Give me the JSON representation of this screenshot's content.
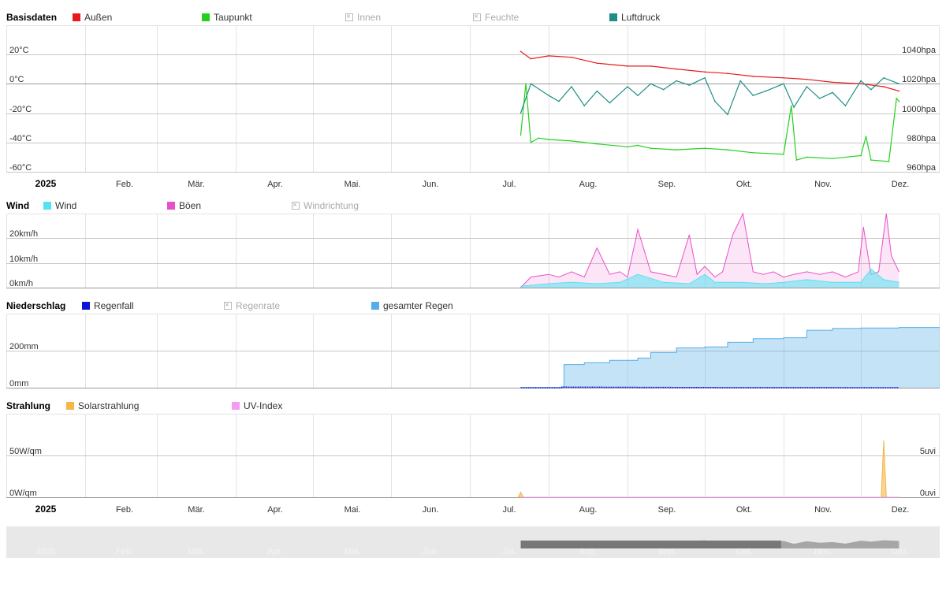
{
  "x_axis": {
    "labels": [
      "2025",
      "Feb.",
      "Mär.",
      "Apr.",
      "Mai.",
      "Jun.",
      "Jul.",
      "Aug.",
      "Sep.",
      "Okt.",
      "Nov.",
      "Dez."
    ],
    "start_label_bold": "2025"
  },
  "panels": {
    "basisdaten": {
      "title": "Basisdaten",
      "legend": [
        {
          "label": "Außen",
          "color": "#e8191d",
          "on": true
        },
        {
          "label": "Taupunkt",
          "color": "#23d11d",
          "on": true
        },
        {
          "label": "Innen",
          "color": "#cccccc",
          "on": false
        },
        {
          "label": "Feuchte",
          "color": "#cccccc",
          "on": false
        },
        {
          "label": "Luftdruck",
          "color": "#1f8e86",
          "on": true
        }
      ],
      "y_left_ticks": [
        "20°C",
        "0°C",
        "-20°C",
        "-40°C",
        "-60°C"
      ],
      "y_right_ticks": [
        "1040hpa",
        "1020hpa",
        "1000hpa",
        "980hpa",
        "960hpa"
      ]
    },
    "wind": {
      "title": "Wind",
      "legend": [
        {
          "label": "Wind",
          "color": "#55e3f2",
          "on": true
        },
        {
          "label": "Böen",
          "color": "#ea4fc8",
          "on": true
        },
        {
          "label": "Windrichtung",
          "color": "#cccccc",
          "on": false
        }
      ],
      "y_left_ticks": [
        "20km/h",
        "10km/h",
        "0km/h"
      ]
    },
    "niederschlag": {
      "title": "Niederschlag",
      "legend": [
        {
          "label": "Regenfall",
          "color": "#0d14d6",
          "on": true
        },
        {
          "label": "Regenrate",
          "color": "#cccccc",
          "on": false
        },
        {
          "label": "gesamter Regen",
          "color": "#56aee8",
          "on": true
        }
      ],
      "y_left_ticks": [
        "200mm",
        "0mm"
      ]
    },
    "strahlung": {
      "title": "Strahlung",
      "legend": [
        {
          "label": "Solarstrahlung",
          "color": "#f5b64a",
          "on": true
        },
        {
          "label": "UV-Index",
          "color": "#f59cf0",
          "on": true
        }
      ],
      "y_left_ticks": [
        "50W/qm",
        "0W/qm"
      ],
      "y_right_ticks": [
        "5uvi",
        "0uvi"
      ]
    }
  },
  "chart_data": [
    {
      "type": "line",
      "title": "Basisdaten",
      "x_range": [
        "2025-01-01",
        "2025-12-31"
      ],
      "ylim_temp": [
        -60,
        20
      ],
      "ylim_pressure": [
        960,
        1040
      ],
      "series": [
        {
          "name": "Außen",
          "axis": "temp",
          "color": "#e8191d",
          "x": [
            "2025-07-21",
            "2025-07-25",
            "2025-08-01",
            "2025-08-10",
            "2025-08-20",
            "2025-09-01",
            "2025-09-10",
            "2025-09-20",
            "2025-10-01",
            "2025-10-10",
            "2025-10-20",
            "2025-11-01",
            "2025-11-10",
            "2025-11-20",
            "2025-12-01",
            "2025-12-10",
            "2025-12-16"
          ],
          "y": [
            22,
            17,
            19,
            18,
            14,
            12,
            12,
            10,
            8,
            7,
            5,
            4,
            3,
            1,
            0,
            -2,
            -5
          ]
        },
        {
          "name": "Taupunkt",
          "axis": "temp",
          "color": "#23d11d",
          "x": [
            "2025-07-21",
            "2025-07-23",
            "2025-07-25",
            "2025-07-28",
            "2025-08-01",
            "2025-08-10",
            "2025-08-20",
            "2025-09-01",
            "2025-09-05",
            "2025-09-10",
            "2025-09-20",
            "2025-10-01",
            "2025-10-10",
            "2025-10-20",
            "2025-11-01",
            "2025-11-04",
            "2025-11-06",
            "2025-11-10",
            "2025-11-20",
            "2025-12-01",
            "2025-12-03",
            "2025-12-05",
            "2025-12-12",
            "2025-12-15",
            "2025-12-16"
          ],
          "y": [
            -35,
            0,
            -40,
            -37,
            -38,
            -39,
            -41,
            -43,
            -42,
            -44,
            -45,
            -44,
            -45,
            -47,
            -48,
            -15,
            -52,
            -50,
            -51,
            -49,
            -36,
            -52,
            -53,
            -10,
            -12
          ]
        },
        {
          "name": "Luftdruck",
          "axis": "pressure",
          "color": "#1f8e86",
          "x": [
            "2025-07-21",
            "2025-07-25",
            "2025-08-01",
            "2025-08-05",
            "2025-08-10",
            "2025-08-15",
            "2025-08-20",
            "2025-08-25",
            "2025-09-01",
            "2025-09-05",
            "2025-09-10",
            "2025-09-15",
            "2025-09-20",
            "2025-09-25",
            "2025-10-01",
            "2025-10-05",
            "2025-10-10",
            "2025-10-15",
            "2025-10-20",
            "2025-10-25",
            "2025-11-01",
            "2025-11-05",
            "2025-11-10",
            "2025-11-15",
            "2025-11-20",
            "2025-11-25",
            "2025-12-01",
            "2025-12-05",
            "2025-12-10",
            "2025-12-16"
          ],
          "y": [
            1000,
            1020,
            1012,
            1008,
            1018,
            1005,
            1015,
            1007,
            1018,
            1012,
            1020,
            1016,
            1022,
            1019,
            1024,
            1008,
            999,
            1022,
            1012,
            1015,
            1020,
            1004,
            1018,
            1010,
            1014,
            1005,
            1022,
            1016,
            1024,
            1020
          ]
        }
      ]
    },
    {
      "type": "area",
      "title": "Wind",
      "x_range": [
        "2025-01-01",
        "2025-12-31"
      ],
      "ylim": [
        0,
        28
      ],
      "series": [
        {
          "name": "Wind",
          "color": "#55e3f2",
          "x": [
            "2025-07-21",
            "2025-08-01",
            "2025-08-10",
            "2025-08-20",
            "2025-08-29",
            "2025-09-05",
            "2025-09-15",
            "2025-09-25",
            "2025-10-01",
            "2025-10-05",
            "2025-10-15",
            "2025-10-25",
            "2025-11-01",
            "2025-11-10",
            "2025-11-20",
            "2025-12-01",
            "2025-12-05",
            "2025-12-10",
            "2025-12-16"
          ],
          "y": [
            0.5,
            1.5,
            2,
            1.5,
            2,
            5,
            2,
            1.5,
            5,
            2,
            2,
            1.5,
            2,
            3,
            2,
            2,
            7,
            3,
            2
          ]
        },
        {
          "name": "Böen",
          "color": "#ea4fc8",
          "x": [
            "2025-07-21",
            "2025-07-25",
            "2025-08-01",
            "2025-08-05",
            "2025-08-10",
            "2025-08-15",
            "2025-08-20",
            "2025-08-25",
            "2025-08-29",
            "2025-09-01",
            "2025-09-05",
            "2025-09-10",
            "2025-09-15",
            "2025-09-20",
            "2025-09-25",
            "2025-09-28",
            "2025-10-01",
            "2025-10-05",
            "2025-10-08",
            "2025-10-12",
            "2025-10-16",
            "2025-10-20",
            "2025-10-24",
            "2025-10-28",
            "2025-11-01",
            "2025-11-05",
            "2025-11-10",
            "2025-11-15",
            "2025-11-20",
            "2025-11-25",
            "2025-11-30",
            "2025-12-02",
            "2025-12-05",
            "2025-12-08",
            "2025-12-11",
            "2025-12-13",
            "2025-12-16"
          ],
          "y": [
            0,
            4,
            5,
            4,
            6,
            4,
            15,
            5,
            6,
            4,
            22,
            6,
            5,
            4,
            20,
            5,
            8,
            4,
            6,
            20,
            28,
            6,
            5,
            6,
            4,
            5,
            6,
            5,
            6,
            4,
            6,
            23,
            5,
            6,
            28,
            12,
            6
          ]
        }
      ]
    },
    {
      "type": "area",
      "title": "Niederschlag",
      "x_range": [
        "2025-01-01",
        "2025-12-31"
      ],
      "ylim": [
        0,
        400
      ],
      "series": [
        {
          "name": "Regenfall",
          "color": "#0d14d6",
          "x": [
            "2025-07-21",
            "2025-08-06",
            "2025-08-07",
            "2025-10-01",
            "2025-12-16"
          ],
          "y": [
            0,
            0,
            3,
            1,
            0
          ]
        },
        {
          "name": "gesamter Regen",
          "color": "#56aee8",
          "x": [
            "2025-07-21",
            "2025-08-06",
            "2025-08-07",
            "2025-08-15",
            "2025-08-25",
            "2025-09-05",
            "2025-09-10",
            "2025-09-20",
            "2025-10-01",
            "2025-10-10",
            "2025-10-20",
            "2025-11-01",
            "2025-11-10",
            "2025-11-20",
            "2025-12-01",
            "2025-12-16"
          ],
          "y": [
            0,
            5,
            125,
            135,
            148,
            160,
            190,
            215,
            220,
            245,
            265,
            270,
            310,
            320,
            322,
            325
          ]
        }
      ]
    },
    {
      "type": "area",
      "title": "Strahlung",
      "x_range": [
        "2025-01-01",
        "2025-12-31"
      ],
      "ylim_solar": [
        0,
        100
      ],
      "ylim_uv": [
        0,
        10
      ],
      "series": [
        {
          "name": "Solarstrahlung",
          "axis": "solar",
          "color": "#f5b64a",
          "x": [
            "2025-07-20",
            "2025-07-21",
            "2025-07-22",
            "2025-12-09",
            "2025-12-10",
            "2025-12-11"
          ],
          "y": [
            0,
            6,
            0,
            0,
            68,
            0
          ]
        },
        {
          "name": "UV-Index",
          "axis": "uv",
          "color": "#f59cf0",
          "x": [
            "2025-07-21",
            "2025-12-16"
          ],
          "y": [
            0,
            0
          ]
        }
      ]
    }
  ]
}
